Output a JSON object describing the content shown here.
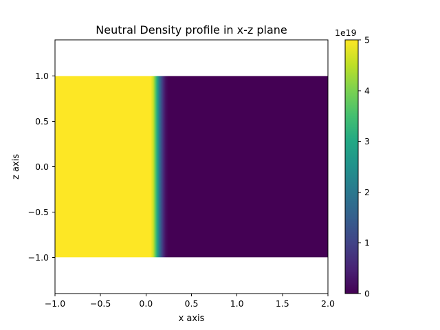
{
  "chart_data": {
    "type": "heatmap",
    "title": "Neutral Density profile in x-z plane",
    "xlabel": "x axis",
    "ylabel": "z axis",
    "xlim": [
      -1.0,
      2.0
    ],
    "ylim": [
      -1.4,
      1.4
    ],
    "xticks": [
      -1.0,
      -0.5,
      0.0,
      0.5,
      1.0,
      1.5,
      2.0
    ],
    "xtick_labels": [
      "−1.0",
      "−0.5",
      "0.0",
      "0.5",
      "1.0",
      "1.5",
      "2.0"
    ],
    "yticks": [
      1.0,
      0.5,
      0.0,
      -0.5,
      -1.0
    ],
    "ytick_labels": [
      "1.0",
      "0.5",
      "0.0",
      "−0.5",
      "−1.0"
    ],
    "data_extent": {
      "x": [
        -1.0,
        2.0
      ],
      "z": [
        -1.0,
        1.0
      ]
    },
    "profile": {
      "description_of_variation": "density varies along x only",
      "x": [
        -1.0,
        0.0,
        0.05,
        0.08,
        0.1,
        0.12,
        0.14,
        0.16,
        0.18,
        0.2,
        0.22,
        0.25,
        0.3,
        2.0
      ],
      "density": [
        5e+19,
        5e+19,
        5e+19,
        4.6e+19,
        3.9e+19,
        3.1e+19,
        2.3e+19,
        1.5e+19,
        9e+18,
        4.5e+18,
        1.5e+18,
        0.0,
        0.0,
        0.0
      ]
    },
    "colorbar": {
      "colormap": "viridis",
      "range": [
        0,
        5e+19
      ],
      "ticks": [
        0,
        1,
        2,
        3,
        4,
        5
      ],
      "tick_labels": [
        "0",
        "1",
        "2",
        "3",
        "4",
        "5"
      ],
      "offset_label": "1e19"
    },
    "grid": false
  }
}
